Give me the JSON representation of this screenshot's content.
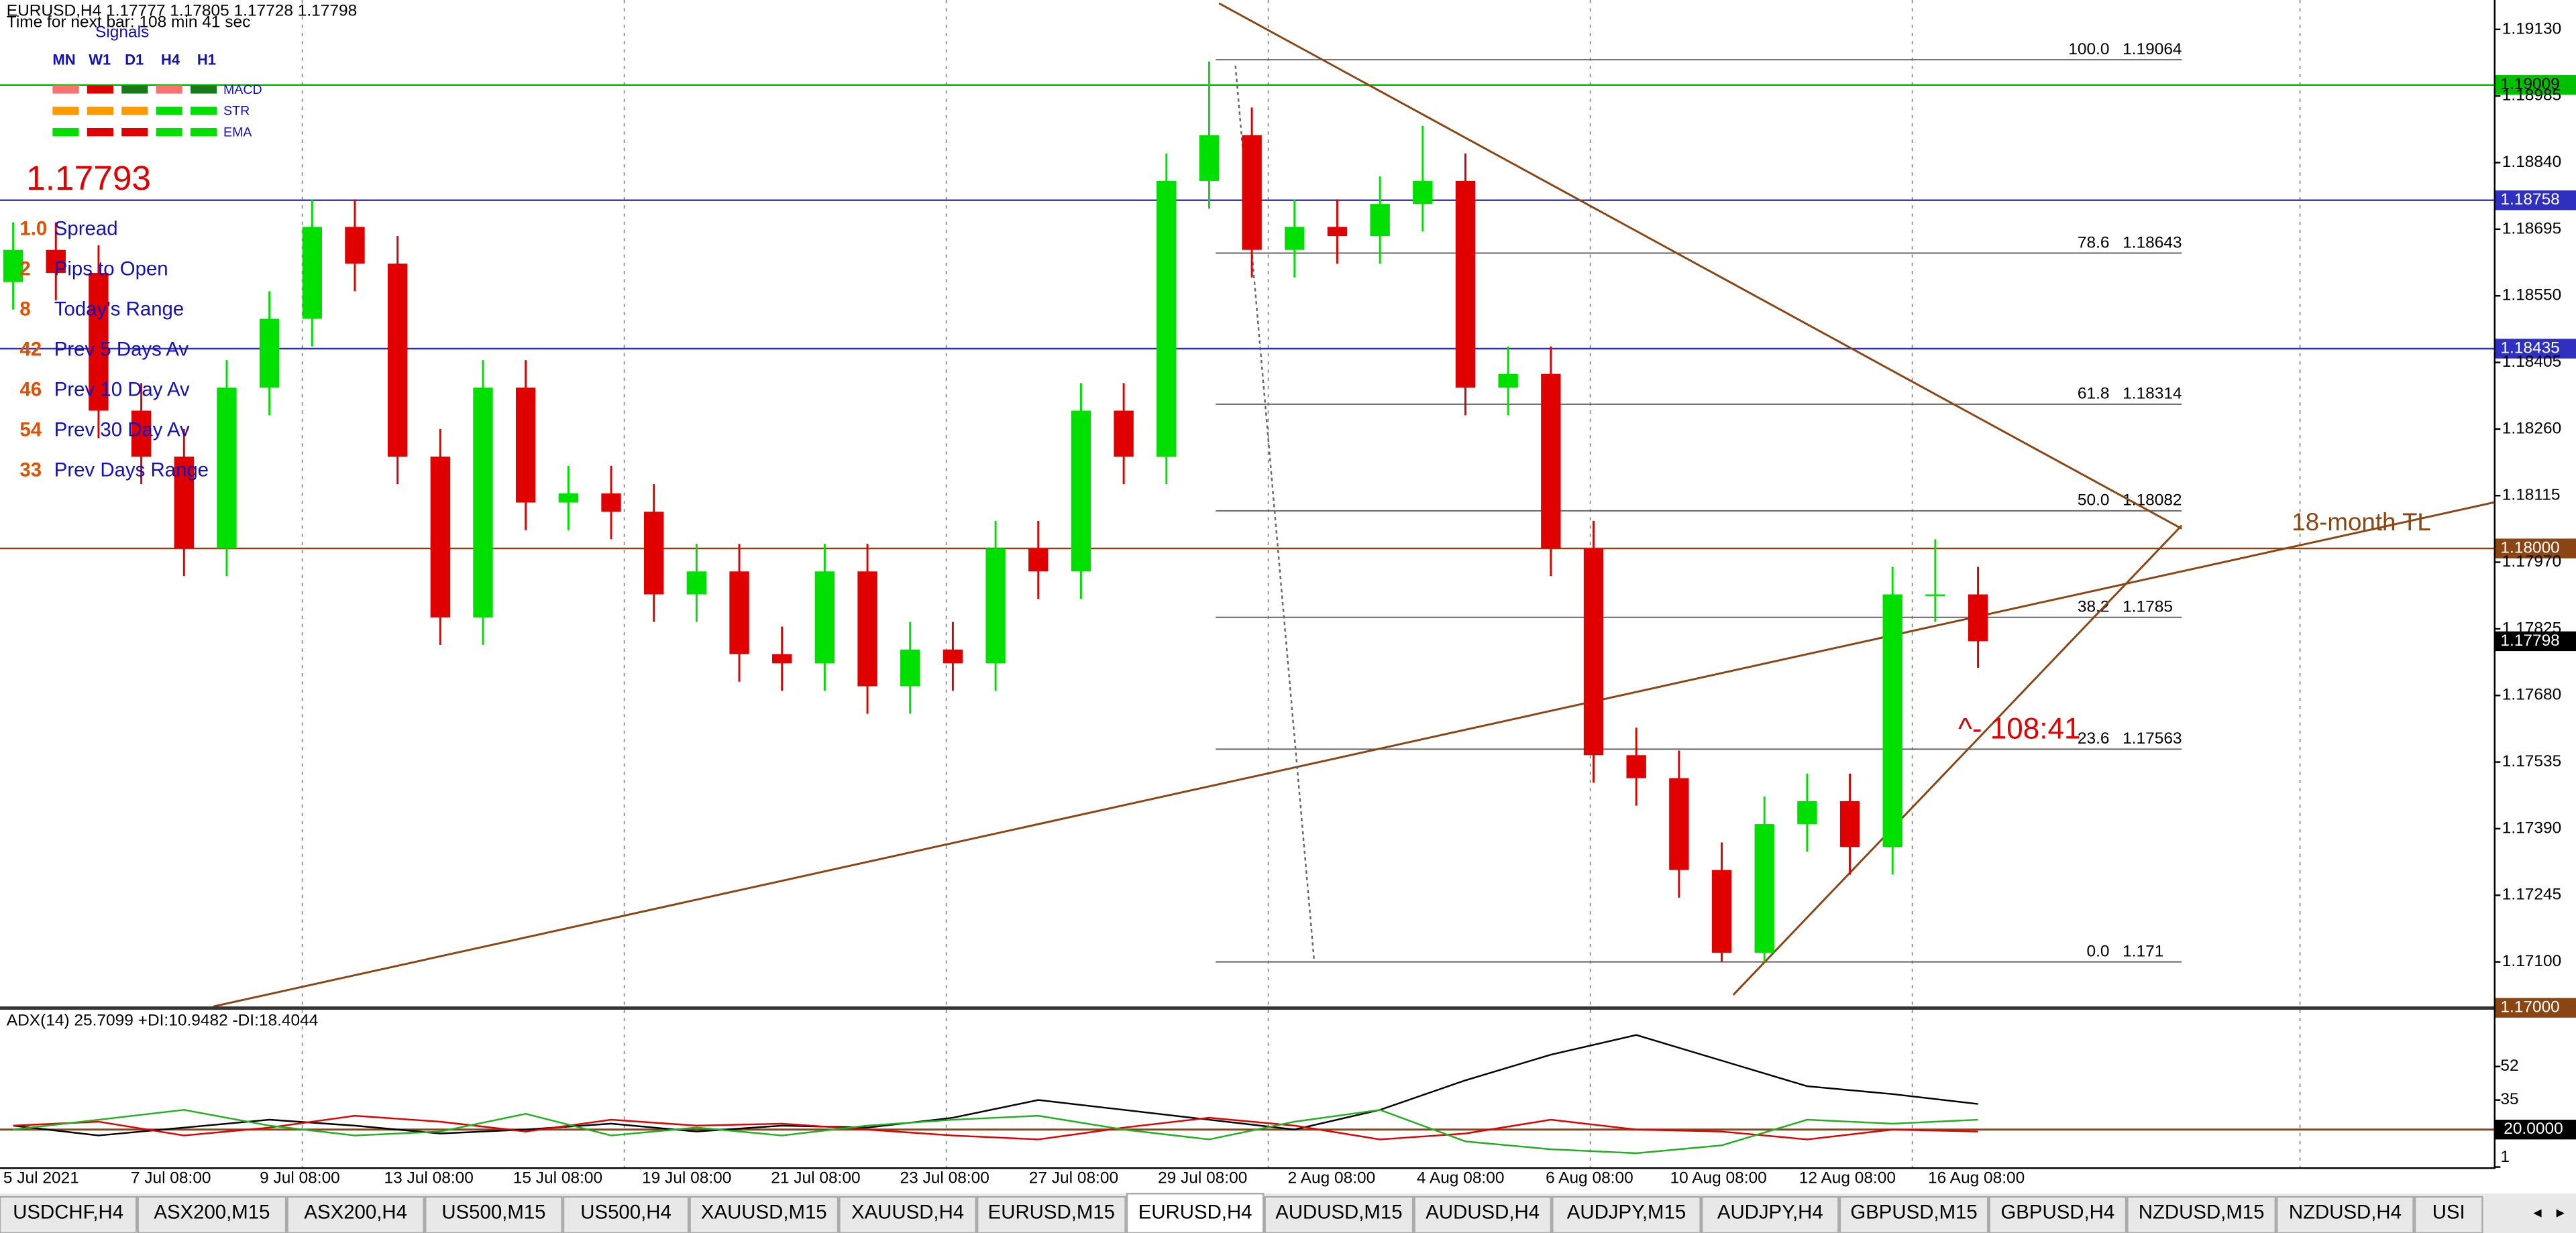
{
  "header": {
    "symbol_info": "EURUSD,H4  1.17777 1.17805 1.17728 1.17798",
    "timer": "Time for next bar: 108 min 41 sec"
  },
  "signals": {
    "title": "Signals",
    "timeframes": [
      "MN",
      "W1",
      "D1",
      "H4",
      "H1"
    ],
    "rows": [
      "MACD",
      "STR",
      "EMA"
    ]
  },
  "price": "1.17793",
  "stats": [
    {
      "value": "1.0",
      "label": "Spread"
    },
    {
      "value": "2",
      "label": "Pips to Open"
    },
    {
      "value": "8",
      "label": "Today's Range"
    },
    {
      "value": "42",
      "label": "Prev 5 Days Av"
    },
    {
      "value": "46",
      "label": "Prev 10 Day Av"
    },
    {
      "value": "54",
      "label": "Prev 30 Day Av"
    },
    {
      "value": "33",
      "label": "Prev Days Range"
    }
  ],
  "chart_data": {
    "type": "candlestick",
    "open": [
      1.1858,
      1.1865,
      1.186,
      1.183,
      1.182,
      1.18,
      1.1835,
      1.185,
      1.187,
      1.1862,
      1.182,
      1.1785,
      1.1835,
      1.181,
      1.1812,
      1.1808,
      1.179,
      1.1795,
      1.1777,
      1.1775,
      1.1795,
      1.177,
      1.1778,
      1.1775,
      1.18,
      1.1795,
      1.183,
      1.182,
      1.188,
      1.189,
      1.1865,
      1.187,
      1.1868,
      1.1875,
      1.188,
      1.1835,
      1.1838,
      1.18,
      1.1755,
      1.175,
      1.173,
      1.1712,
      1.174,
      1.1745,
      1.1735,
      1.179,
      1.179
    ],
    "high": [
      1.1871,
      1.1871,
      1.1866,
      1.1836,
      1.1826,
      1.1841,
      1.1856,
      1.1876,
      1.1876,
      1.1868,
      1.1826,
      1.1841,
      1.1841,
      1.1818,
      1.1818,
      1.1814,
      1.1801,
      1.1801,
      1.1783,
      1.1801,
      1.1801,
      1.1784,
      1.1784,
      1.1806,
      1.1806,
      1.1836,
      1.1836,
      1.1886,
      1.1906,
      1.1896,
      1.1876,
      1.1876,
      1.1881,
      1.1892,
      1.1886,
      1.1844,
      1.1844,
      1.1806,
      1.1761,
      1.1756,
      1.1736,
      1.1746,
      1.1751,
      1.1751,
      1.1796,
      1.1802,
      1.1796
    ],
    "low": [
      1.1852,
      1.1854,
      1.1824,
      1.1814,
      1.1794,
      1.1794,
      1.1829,
      1.1844,
      1.1856,
      1.1814,
      1.1779,
      1.1779,
      1.1804,
      1.1804,
      1.1802,
      1.1784,
      1.1784,
      1.1771,
      1.1769,
      1.1769,
      1.1764,
      1.1764,
      1.1769,
      1.1769,
      1.1789,
      1.1789,
      1.1814,
      1.1814,
      1.1874,
      1.1859,
      1.1859,
      1.1862,
      1.1862,
      1.1869,
      1.1829,
      1.1829,
      1.1794,
      1.1749,
      1.1744,
      1.1724,
      1.171,
      1.171,
      1.1734,
      1.1729,
      1.1729,
      1.1784,
      1.1774
    ],
    "close": [
      1.1865,
      1.186,
      1.183,
      1.182,
      1.18,
      1.1835,
      1.185,
      1.187,
      1.1862,
      1.182,
      1.1785,
      1.1835,
      1.181,
      1.1812,
      1.1808,
      1.179,
      1.1795,
      1.1777,
      1.1775,
      1.1795,
      1.177,
      1.1778,
      1.1775,
      1.18,
      1.1795,
      1.183,
      1.182,
      1.188,
      1.189,
      1.1865,
      1.187,
      1.1868,
      1.1875,
      1.188,
      1.1835,
      1.1838,
      1.18,
      1.1755,
      1.175,
      1.173,
      1.1712,
      1.174,
      1.1745,
      1.1735,
      1.179,
      1.179,
      1.17798
    ],
    "up_color": "#00e000",
    "down_color": "#e00000",
    "ylim": [
      1.17003,
      1.19194
    ],
    "yticks": [
      {
        "value": 1.1913,
        "label": "1.19130"
      },
      {
        "value": 1.18985,
        "label": "1.18985"
      },
      {
        "value": 1.1884,
        "label": "1.18840"
      },
      {
        "value": 1.18695,
        "label": "1.18695"
      },
      {
        "value": 1.1855,
        "label": "1.18550"
      },
      {
        "value": 1.18405,
        "label": "1.18405"
      },
      {
        "value": 1.1826,
        "label": "1.18260"
      },
      {
        "value": 1.18115,
        "label": "1.18115"
      },
      {
        "value": 1.1797,
        "label": "1.17970"
      },
      {
        "value": 1.17825,
        "label": "1.17825"
      },
      {
        "value": 1.1768,
        "label": "1.17680"
      },
      {
        "value": 1.17535,
        "label": "1.17535"
      },
      {
        "value": 1.1739,
        "label": "1.17390"
      },
      {
        "value": 1.17245,
        "label": "1.17245"
      },
      {
        "value": 1.171,
        "label": "1.17100"
      }
    ],
    "fib": [
      {
        "level": "100.0",
        "price": 1.19064
      },
      {
        "level": "78.6",
        "price": 1.18643
      },
      {
        "level": "61.8",
        "price": 1.18314
      },
      {
        "level": "50.0",
        "price": 1.18082
      },
      {
        "level": "38.2",
        "price": 1.1785
      },
      {
        "level": "23.6",
        "price": 1.17563
      },
      {
        "level": "0.0",
        "price": 1.171
      }
    ],
    "levels": [
      {
        "value": 1.19009,
        "label": "1.19009",
        "color": "#00c000"
      },
      {
        "value": 1.18758,
        "label": "1.18758",
        "color": "#3030c0"
      },
      {
        "value": 1.18435,
        "label": "1.18435",
        "color": "#3030c0"
      },
      {
        "value": 1.18,
        "label": "1.18000",
        "color": "#8b4513"
      },
      {
        "value": 1.17798,
        "label": "1.17798",
        "color": "#000000"
      },
      {
        "value": 1.17,
        "label": "1.17000",
        "color": "#8b4513"
      }
    ],
    "annotations": [
      "18-month TL",
      "^- 108:41"
    ],
    "x_labels": [
      "5 Jul 2021",
      "7 Jul 08:00",
      "9 Jul 08:00",
      "13 Jul 08:00",
      "15 Jul 08:00",
      "19 Jul 08:00",
      "21 Jul 08:00",
      "23 Jul 08:00",
      "27 Jul 08:00",
      "29 Jul 08:00",
      "2 Aug 08:00",
      "4 Aug 08:00",
      "6 Aug 08:00",
      "10 Aug 08:00",
      "12 Aug 08:00",
      "16 Aug 08:00"
    ]
  },
  "indicator": {
    "type": "line",
    "title": "ADX(14) 25.7099 +DI:10.9482 -DI:18.4044",
    "ylim": [
      0,
      80
    ],
    "yticks": [
      52,
      35,
      20,
      1
    ],
    "level": {
      "value": 20,
      "label": "20.0000"
    },
    "series": [
      {
        "color": "#000000",
        "values": [
          22,
          17,
          21,
          25,
          22,
          18,
          20,
          23,
          19,
          22,
          21,
          26,
          35,
          30,
          25,
          20,
          30,
          45,
          58,
          68,
          55,
          42,
          38,
          33
        ]
      },
      {
        "color": "#e00000",
        "values": [
          22,
          24,
          17,
          21,
          27,
          24,
          19,
          25,
          22,
          23,
          20,
          17,
          15,
          21,
          26,
          22,
          15,
          18,
          25,
          20,
          19,
          15,
          20,
          19
        ]
      },
      {
        "color": "#20b020",
        "values": [
          20,
          25,
          30,
          22,
          17,
          19,
          28,
          17,
          21,
          17,
          22,
          25,
          27,
          20,
          15,
          24,
          30,
          14,
          10,
          8,
          12,
          25,
          23,
          25
        ]
      }
    ]
  },
  "tabs": [
    "USDCHF,H4",
    "ASX200,M15",
    "ASX200,H4",
    "US500,M15",
    "US500,H4",
    "XAUUSD,M15",
    "XAUUSD,H4",
    "EURUSD,M15",
    "EURUSD,H4",
    "AUDUSD,M15",
    "AUDUSD,H4",
    "AUDJPY,M15",
    "AUDJPY,H4",
    "GBPUSD,M15",
    "GBPUSD,H4",
    "NZDUSD,M15",
    "NZDUSD,H4",
    "USI"
  ],
  "active_tab": 8
}
